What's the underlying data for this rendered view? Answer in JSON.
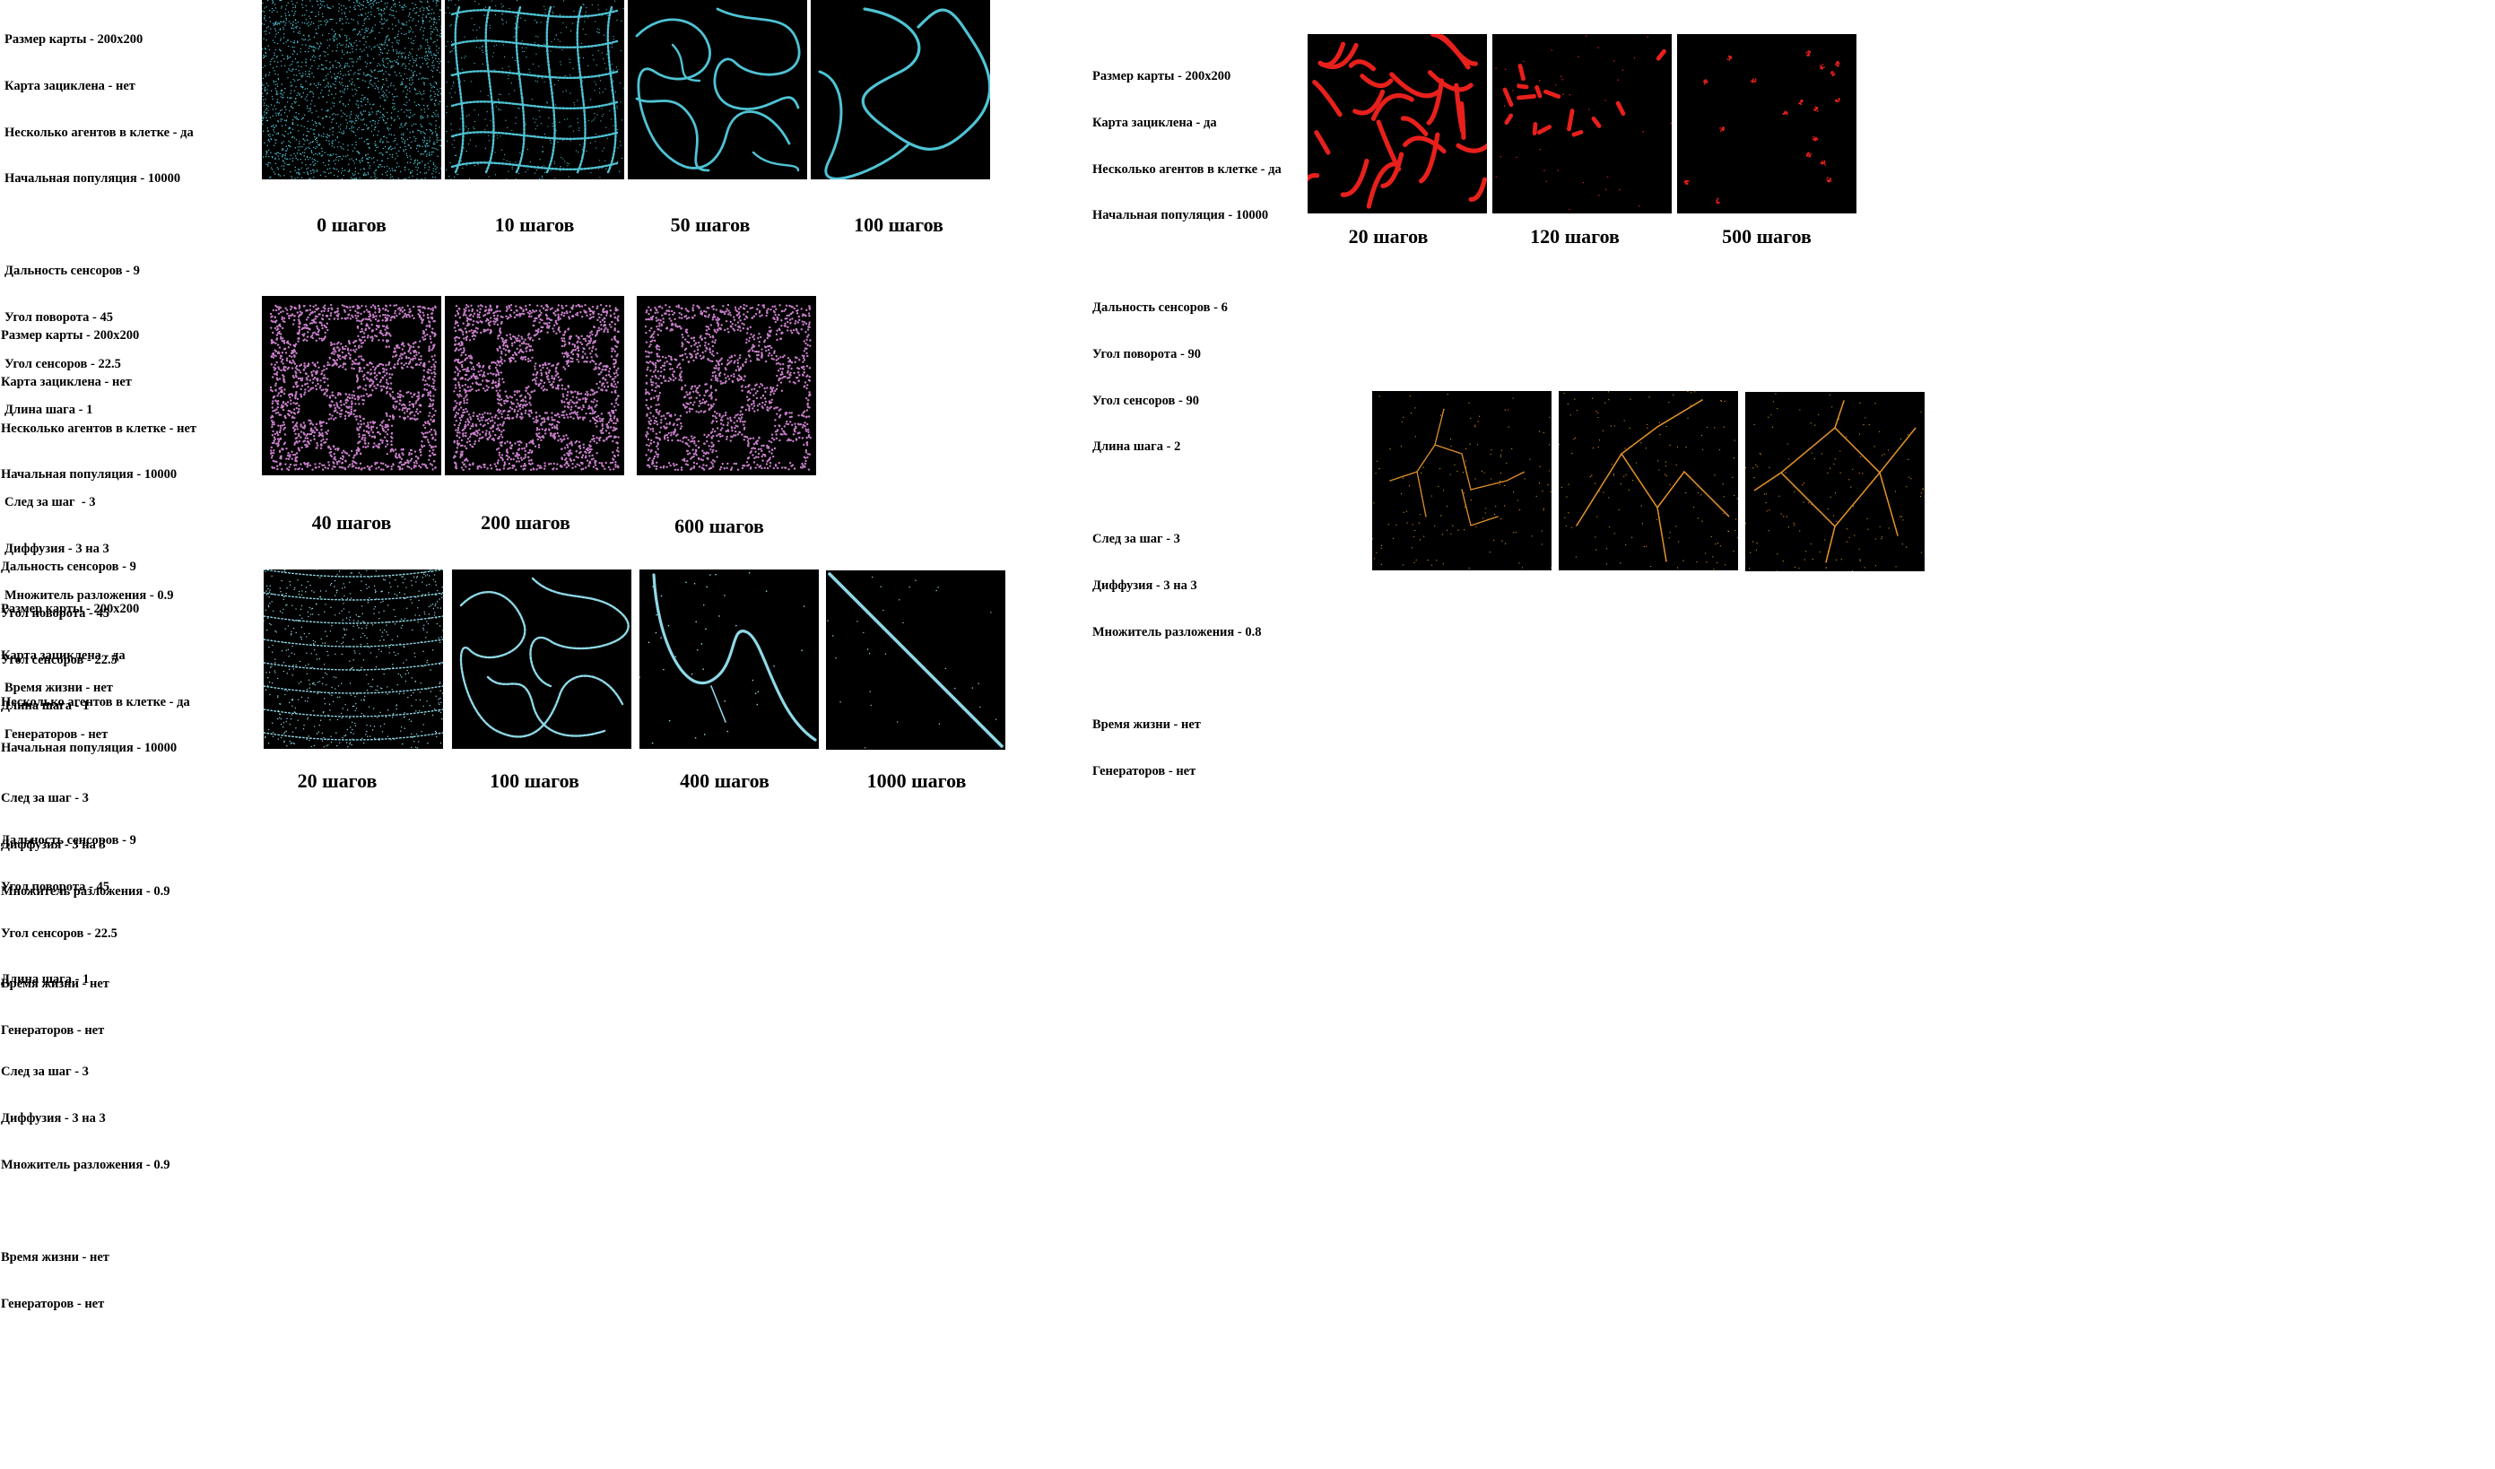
{
  "experiments": [
    {
      "id": "exp1",
      "color": "#4fc3d4",
      "params": [
        "Размер карты - 200x200",
        "Карта зациклена - нет",
        "Несколько агентов в клетке - да",
        "Начальная популяция - 10000",
        "",
        "Дальность сенсоров - 9",
        "Угол поворота - 45",
        "Угол сенсоров - 22.5",
        "Длина шага - 1",
        "",
        "След за шаг  - 3",
        "Диффузия - 3 на 3",
        "Множитель разложения - 0.9",
        "",
        "Время жизни - нет",
        "Генераторов - нет"
      ],
      "captions": [
        "0 шагов",
        "10 шагов",
        "50 шагов",
        "100 шагов"
      ]
    },
    {
      "id": "exp2",
      "color": "#c77fc9",
      "params": [
        "Размер карты - 200x200",
        "Карта зациклена - нет",
        "Несколько агентов в клетке - нет",
        "Начальная популяция - 10000",
        "",
        "Дальность сенсоров - 9",
        "Угол поворота - 45",
        "Угол сенсоров - 22.5",
        "Длина шага - 1",
        "",
        "След за шаг - 3",
        "Диффузия - 3 на 3",
        "Множитель разложения - 0.9",
        "",
        "Время жизни - нет",
        "Генераторов - нет"
      ],
      "captions": [
        "40 шагов",
        "200 шагов",
        "600 шагов"
      ]
    },
    {
      "id": "exp3",
      "color": "#8fd8e6",
      "params": [
        "Размер карты - 200x200",
        "Карта зациклена - да",
        "Несколько агентов в клетке - да",
        "Начальная популяция - 10000",
        "",
        "Дальность сенсоров - 9",
        "Угол поворота - 45",
        "Угол сенсоров - 22.5",
        "Длина шага - 1",
        "",
        "След за шаг - 3",
        "Диффузия - 3 на 3",
        "Множитель разложения - 0.9",
        "",
        "Время жизни - нет",
        "Генераторов - нет"
      ],
      "captions": [
        "20 шагов",
        "100 шагов",
        "400 шагов",
        "1000 шагов"
      ]
    },
    {
      "id": "exp4",
      "color": "#e8201c",
      "params": [
        "Размер карты - 200x200",
        "Карта зациклена - да",
        "Несколько агентов в клетке - да",
        "Начальная популяция - 10000",
        "",
        "Дальность сенсоров - 6",
        "Угол поворота - 90",
        "Угол сенсоров - 90",
        "Длина шага - 2",
        "",
        "След за шаг - 3",
        "Диффузия - 3 на 3",
        "Множитель разложения - 0.8",
        "",
        "Время жизни - нет",
        "Генераторов - нет"
      ],
      "captions": [
        "20 шагов",
        "120 шагов",
        "500 шагов"
      ]
    },
    {
      "id": "exp5",
      "color": "#e0902a",
      "params": [],
      "captions": []
    }
  ]
}
